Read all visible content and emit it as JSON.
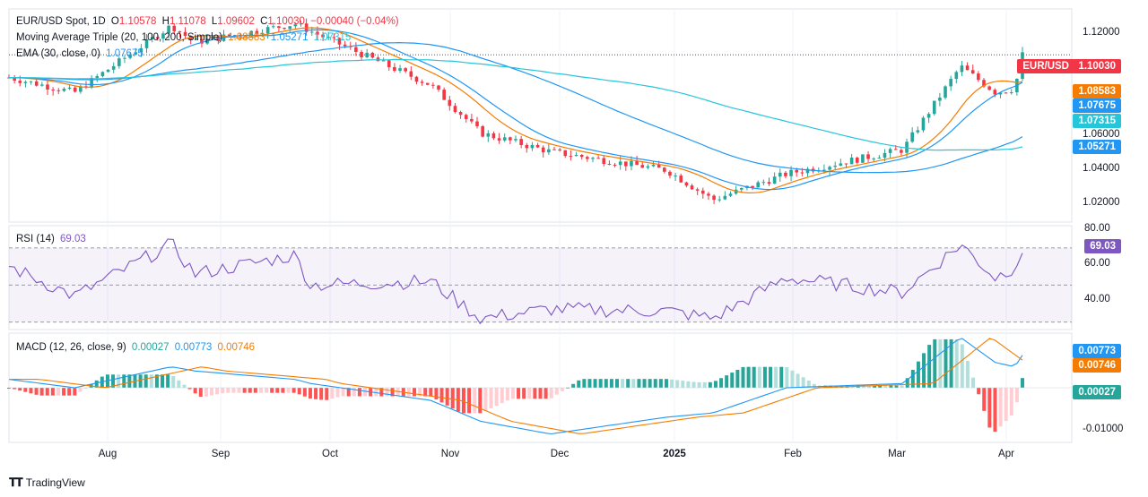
{
  "main_legend": {
    "symbol": "EUR/USD Spot, 1D",
    "open_label": "O",
    "open": "1.10578",
    "high_label": "H",
    "high": "1.11078",
    "low_label": "L",
    "low": "1.09602",
    "close_label": "C",
    "close": "1.10030",
    "change": "−0.00040 (−0.04%)",
    "ma_title": "Moving Average Triple (20, 100, 200, Simple)",
    "ma20": "1.08583",
    "ma100": "1.05271",
    "ma200": "1.07315",
    "ema_title": "EMA (30, close, 0)",
    "ema": "1.07675"
  },
  "rsi_legend": {
    "title": "RSI (14)",
    "value": "69.03"
  },
  "macd_legend": {
    "title": "MACD (12, 26, close, 9)",
    "hist": "0.00027",
    "macd": "0.00773",
    "signal": "0.00746"
  },
  "price_axis": [
    "1.12000",
    "1.06000",
    "1.04000",
    "1.02000"
  ],
  "rsi_axis": [
    "80.00",
    "60.00",
    "40.00"
  ],
  "macd_axis": [
    "-0.01000"
  ],
  "badges": {
    "symbol_price": "EUR/USD",
    "last_price": "1.10030",
    "ma20": "1.08583",
    "ema": "1.07675",
    "ma200": "1.07315",
    "ma100": "1.05271",
    "rsi": "69.03",
    "macd": "0.00773",
    "signal": "0.00746",
    "hist": "0.00027"
  },
  "time_axis": [
    "Aug",
    "Sep",
    "Oct",
    "Nov",
    "Dec",
    "2025",
    "Feb",
    "Mar",
    "Apr"
  ],
  "footer": {
    "brand": "TradingView"
  },
  "colors": {
    "up": "#26a69a",
    "down": "#f23645",
    "ma20": "#f57c00",
    "ma100": "#2196f3",
    "ma200": "#26c6da",
    "ema": "#2196f3",
    "rsi": "#7e57c2",
    "macd": "#2196f3",
    "signal": "#f57c00",
    "hist_up_strong": "#26a69a",
    "hist_up_weak": "#b2dfdb",
    "hist_down_strong": "#ff5252",
    "hist_down_weak": "#ffcdd2"
  },
  "chart_data": {
    "type": "line",
    "x": [
      "2024-07-15",
      "2024-08-01",
      "2024-08-26",
      "2024-09-01",
      "2024-09-27",
      "2024-10-01",
      "2024-11-01",
      "2024-11-14",
      "2024-12-02",
      "2025-01-01",
      "2025-01-13",
      "2025-02-01",
      "2025-03-03",
      "2025-03-18",
      "2025-03-27",
      "2025-04-01",
      "2025-04-03"
    ],
    "series": [
      {
        "name": "EUR/USD close",
        "values": [
          1.088,
          1.08,
          1.116,
          1.107,
          1.117,
          1.113,
          1.084,
          1.058,
          1.048,
          1.038,
          1.022,
          1.036,
          1.049,
          1.094,
          1.08,
          1.082,
          1.1003
        ]
      },
      {
        "name": "RSI (14)",
        "values": [
          60,
          44,
          72,
          56,
          66,
          50,
          52,
          32,
          37,
          36,
          32,
          54,
          46,
          72,
          54,
          60,
          69.03
        ]
      },
      {
        "name": "MACD",
        "values": [
          0.002,
          0.0,
          0.005,
          0.004,
          0.002,
          0.001,
          -0.003,
          -0.008,
          -0.011,
          -0.007,
          -0.006,
          0.0,
          0.001,
          0.012,
          0.006,
          0.005,
          0.00773
        ]
      }
    ],
    "price_ylim": [
      1.01,
      1.125
    ],
    "rsi_ylim": [
      26,
      82
    ],
    "macd_ylim": [
      -0.013,
      0.013
    ]
  }
}
